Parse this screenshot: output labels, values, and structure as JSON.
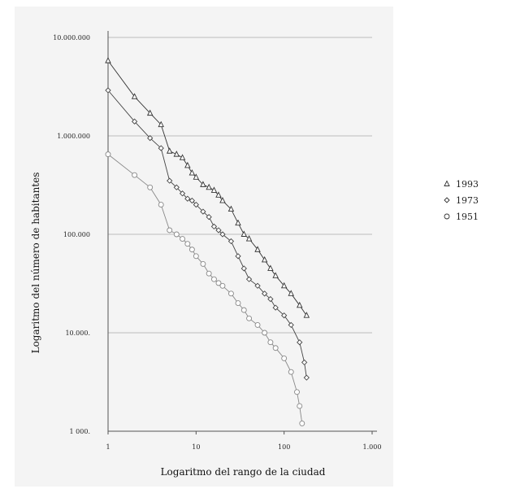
{
  "chart_data": {
    "type": "scatter",
    "xscale": "log",
    "yscale": "log",
    "xlabel": "Logaritmo del rango de la ciudad",
    "ylabel": "Logaritmo del número de habitantes",
    "xlim": [
      1,
      1000
    ],
    "ylim": [
      1000,
      10000000
    ],
    "x_tick_labels": [
      "1",
      "10",
      "100",
      "1.000"
    ],
    "x_tick_values": [
      1,
      10,
      100,
      1000
    ],
    "y_tick_labels": [
      "10.000.000",
      "1.000.000",
      "100.000",
      "10.000.",
      "1 000."
    ],
    "y_tick_values": [
      10000000,
      1000000,
      100000,
      10000,
      1000
    ],
    "grid": "horizontal",
    "legend_position": "right",
    "series": [
      {
        "name": "1993",
        "marker": "triangle",
        "color": "#333333",
        "points": [
          [
            1,
            5800000
          ],
          [
            2,
            2500000
          ],
          [
            3,
            1700000
          ],
          [
            4,
            1300000
          ],
          [
            5,
            700000
          ],
          [
            6,
            650000
          ],
          [
            7,
            600000
          ],
          [
            8,
            500000
          ],
          [
            9,
            420000
          ],
          [
            10,
            380000
          ],
          [
            12,
            320000
          ],
          [
            14,
            300000
          ],
          [
            16,
            280000
          ],
          [
            18,
            250000
          ],
          [
            20,
            220000
          ],
          [
            25,
            180000
          ],
          [
            30,
            130000
          ],
          [
            35,
            100000
          ],
          [
            40,
            90000
          ],
          [
            50,
            70000
          ],
          [
            60,
            55000
          ],
          [
            70,
            45000
          ],
          [
            80,
            38000
          ],
          [
            100,
            30000
          ],
          [
            120,
            25000
          ],
          [
            150,
            19000
          ],
          [
            180,
            15000
          ]
        ]
      },
      {
        "name": "1973",
        "marker": "diamond",
        "color": "#444444",
        "points": [
          [
            1,
            2900000
          ],
          [
            2,
            1400000
          ],
          [
            3,
            950000
          ],
          [
            4,
            750000
          ],
          [
            5,
            350000
          ],
          [
            6,
            300000
          ],
          [
            7,
            260000
          ],
          [
            8,
            230000
          ],
          [
            9,
            220000
          ],
          [
            10,
            200000
          ],
          [
            12,
            170000
          ],
          [
            14,
            150000
          ],
          [
            16,
            120000
          ],
          [
            18,
            110000
          ],
          [
            20,
            100000
          ],
          [
            25,
            85000
          ],
          [
            30,
            60000
          ],
          [
            35,
            45000
          ],
          [
            40,
            35000
          ],
          [
            50,
            30000
          ],
          [
            60,
            25000
          ],
          [
            70,
            22000
          ],
          [
            80,
            18000
          ],
          [
            100,
            15000
          ],
          [
            120,
            12000
          ],
          [
            150,
            8000
          ],
          [
            170,
            5000
          ],
          [
            180,
            3500
          ]
        ]
      },
      {
        "name": "1951",
        "marker": "circle",
        "color": "#888888",
        "points": [
          [
            1,
            650000
          ],
          [
            2,
            400000
          ],
          [
            3,
            300000
          ],
          [
            4,
            200000
          ],
          [
            5,
            110000
          ],
          [
            6,
            100000
          ],
          [
            7,
            90000
          ],
          [
            8,
            80000
          ],
          [
            9,
            70000
          ],
          [
            10,
            60000
          ],
          [
            12,
            50000
          ],
          [
            14,
            40000
          ],
          [
            16,
            35000
          ],
          [
            18,
            32000
          ],
          [
            20,
            30000
          ],
          [
            25,
            25000
          ],
          [
            30,
            20000
          ],
          [
            35,
            17000
          ],
          [
            40,
            14000
          ],
          [
            50,
            12000
          ],
          [
            60,
            10000
          ],
          [
            70,
            8000
          ],
          [
            80,
            7000
          ],
          [
            100,
            5500
          ],
          [
            120,
            4000
          ],
          [
            140,
            2500
          ],
          [
            150,
            1800
          ],
          [
            160,
            1200
          ]
        ]
      }
    ]
  }
}
